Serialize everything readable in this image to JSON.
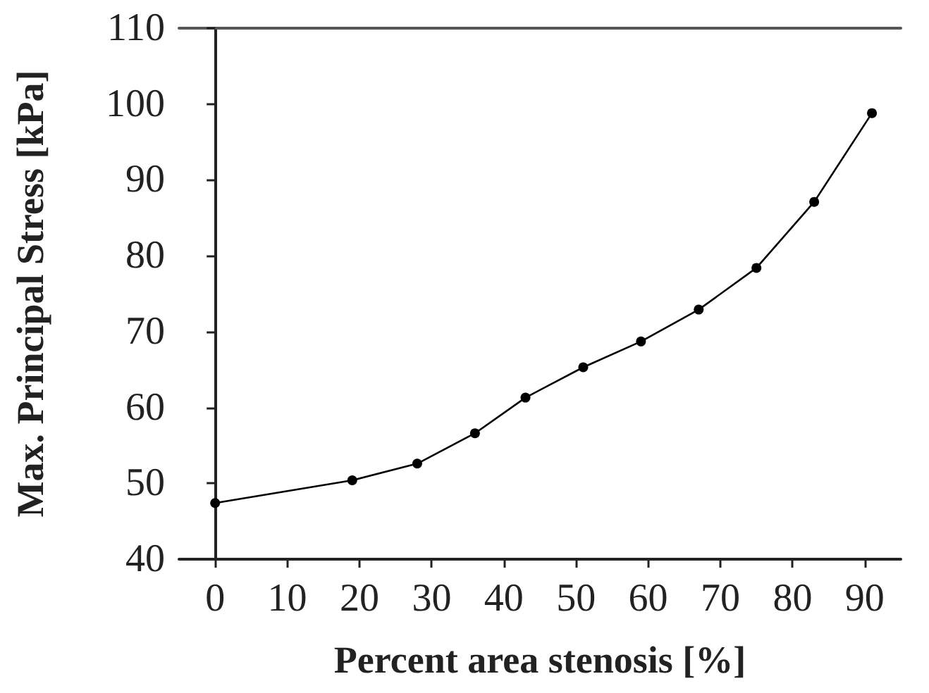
{
  "chart_data": {
    "type": "line",
    "xlabel": "Percent area stenosis [%]",
    "ylabel": "Max. Principal Stress [kPa]",
    "x": [
      0,
      19,
      28,
      36,
      43,
      51,
      59,
      67,
      75,
      83,
      91
    ],
    "series": [
      {
        "color": "#000000",
        "values": [
          47.4,
          50.4,
          52.6,
          56.6,
          61.3,
          65.3,
          68.7,
          72.9,
          78.4,
          87.1,
          98.8
        ]
      }
    ],
    "xlim": [
      -5,
      95
    ],
    "xticks": [
      0,
      10,
      20,
      30,
      40,
      50,
      60,
      70,
      80,
      90
    ],
    "ylim": [
      40,
      110
    ],
    "yticks": [
      40,
      50,
      60,
      70,
      80,
      90,
      100,
      110
    ],
    "grid": false,
    "marker": "circle",
    "line_style": "solid"
  }
}
